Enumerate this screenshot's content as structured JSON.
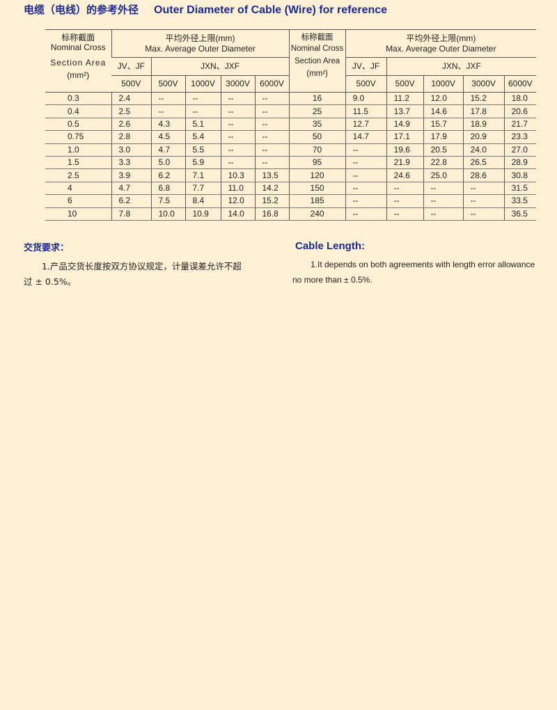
{
  "title": {
    "zh": "电缆（电线）的参考外径",
    "en": "Outer Diameter of Cable (Wire) for reference"
  },
  "table": {
    "area_header": {
      "zh": "标称截面",
      "en1": "Nominal Cross",
      "en2": "Section Area",
      "unit": "(mm²)"
    },
    "diam_header": {
      "zh": "平均外径上限(mm)",
      "en": "Max. Average Outer Diameter"
    },
    "group1": "JV、JF",
    "group2": "JXN、JXF",
    "voltages": [
      "500V",
      "500V",
      "1000V",
      "3000V",
      "6000V"
    ],
    "left_rows": [
      [
        "0.3",
        "2.4",
        "--",
        "--",
        "--",
        "--"
      ],
      [
        "0.4",
        "2.5",
        "--",
        "--",
        "--",
        "--"
      ],
      [
        "0.5",
        "2.6",
        "4.3",
        "5.1",
        "--",
        "--"
      ],
      [
        "0.75",
        "2.8",
        "4.5",
        "5.4",
        "--",
        "--"
      ],
      [
        "1.0",
        "3.0",
        "4.7",
        "5.5",
        "--",
        "--"
      ],
      [
        "1.5",
        "3.3",
        "5.0",
        "5.9",
        "--",
        "--"
      ],
      [
        "2.5",
        "3.9",
        "6.2",
        "7.1",
        "10.3",
        "13.5"
      ],
      [
        "4",
        "4.7",
        "6.8",
        "7.7",
        "11.0",
        "14.2"
      ],
      [
        "6",
        "6.2",
        "7.5",
        "8.4",
        "12.0",
        "15.2"
      ],
      [
        "10",
        "7.8",
        "10.0",
        "10.9",
        "14.0",
        "16.8"
      ]
    ],
    "right_rows": [
      [
        "16",
        "9.0",
        "11.2",
        "12.0",
        "15.2",
        "18.0"
      ],
      [
        "25",
        "11.5",
        "13.7",
        "14.6",
        "17.8",
        "20.6"
      ],
      [
        "35",
        "12.7",
        "14.9",
        "15.7",
        "18.9",
        "21.7"
      ],
      [
        "50",
        "14.7",
        "17.1",
        "17.9",
        "20.9",
        "23.3"
      ],
      [
        "70",
        "--",
        "19.6",
        "20.5",
        "24.0",
        "27.0"
      ],
      [
        "95",
        "--",
        "21.9",
        "22.8",
        "26.5",
        "28.9"
      ],
      [
        "120",
        "--",
        "24.6",
        "25.0",
        "28.6",
        "30.8"
      ],
      [
        "150",
        "--",
        "--",
        "--",
        "--",
        "31.5"
      ],
      [
        "185",
        "--",
        "--",
        "--",
        "--",
        "33.5"
      ],
      [
        "240",
        "--",
        "--",
        "--",
        "--",
        "36.5"
      ]
    ]
  },
  "delivery": {
    "heading_zh": "交货要求：",
    "text_zh_1": "1.产品交货长度按双方协议规定，计量误差允许不超",
    "text_zh_2": "过 ± 0.5%。",
    "heading_en": "Cable Length:",
    "text_en_1": "1.It depends on both agreements with length error allowance",
    "text_en_2": "no more than  ±  0.5%."
  }
}
